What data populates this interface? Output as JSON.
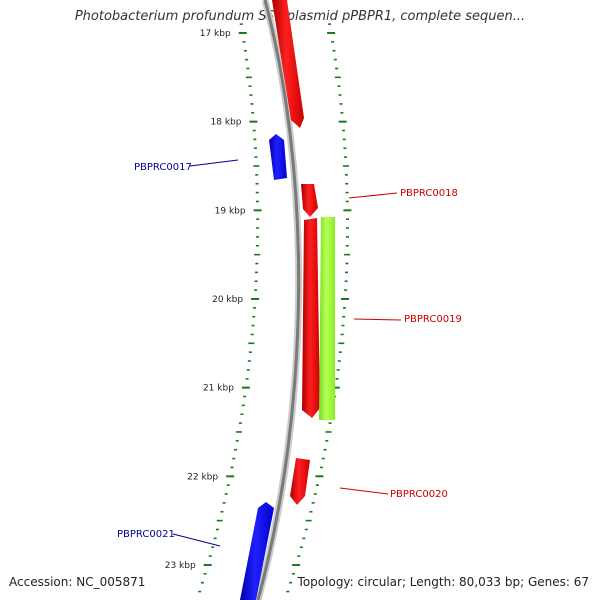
{
  "title": "Photobacterium profundum SS9 plasmid pPBPR1, complete sequen...",
  "accession_text": "Accession: NC_005871",
  "summary_text": "Topology: circular; Length: 80,033 bp; Genes: 67",
  "colors": {
    "forward_gene": "#ff0000",
    "reverse_gene": "#0000ff",
    "feature_green": "#99ff33",
    "backbone": "#888888",
    "tick": "#1a7a1a",
    "label_forward": "#cc0000",
    "label_reverse": "#000099"
  },
  "scale": {
    "unit": "kbp",
    "major_ticks": [
      17,
      18,
      19,
      20,
      21,
      22,
      23
    ],
    "major_tick_labels": [
      "17 kbp",
      "18 kbp",
      "19 kbp",
      "20 kbp",
      "21 kbp",
      "22 kbp",
      "23 kbp"
    ]
  },
  "genes": [
    {
      "label": "",
      "strand": "forward",
      "start_kbp": 16.7,
      "end_kbp": 17.9
    },
    {
      "label": "PBPRC0017",
      "strand": "reverse",
      "start_kbp": 18.2,
      "end_kbp": 18.6
    },
    {
      "label": "PBPRC0018",
      "strand": "forward",
      "start_kbp": 18.8,
      "end_kbp": 19.1
    },
    {
      "label": "PBPRC0019",
      "strand": "forward",
      "start_kbp": 19.1,
      "end_kbp": 21.3
    },
    {
      "label": "",
      "strand": "feature",
      "start_kbp": 19.07,
      "end_kbp": 21.4
    },
    {
      "label": "PBPRC0020",
      "strand": "forward",
      "start_kbp": 21.8,
      "end_kbp": 22.3
    },
    {
      "label": "PBPRC0021",
      "strand": "reverse",
      "start_kbp": 22.3,
      "end_kbp": 23.5
    }
  ]
}
